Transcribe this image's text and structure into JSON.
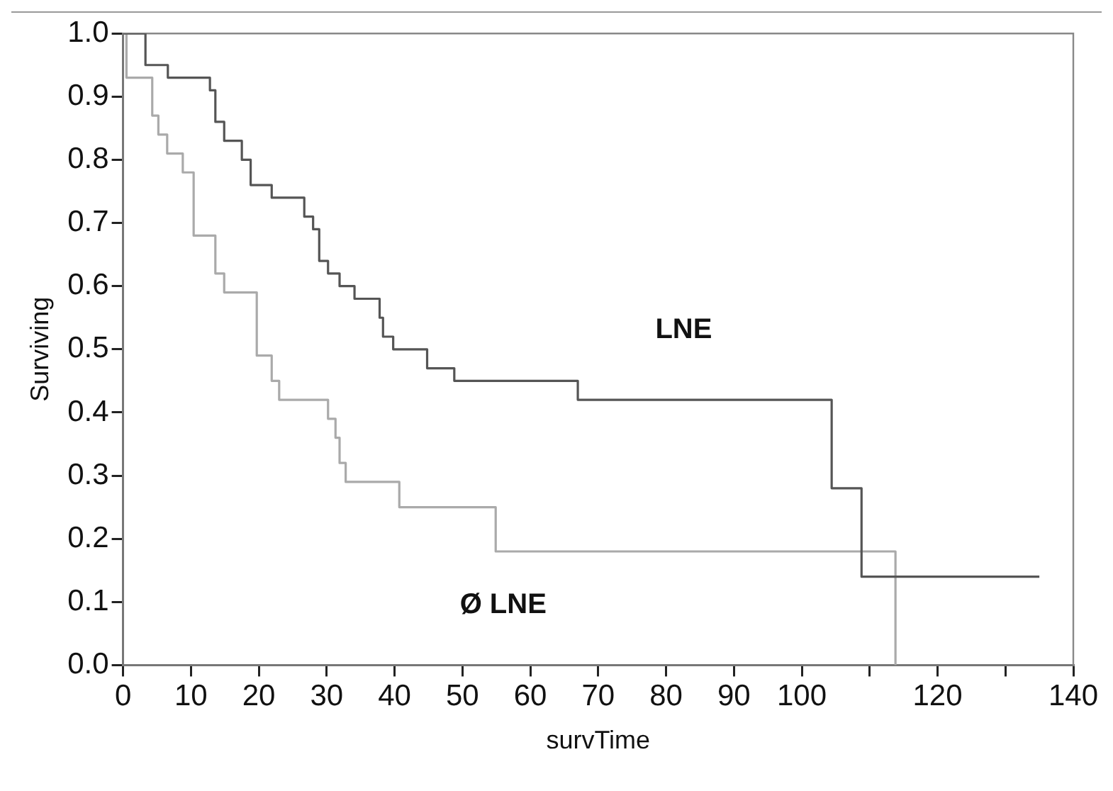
{
  "chart_data": {
    "type": "step",
    "xlabel": "survTime",
    "ylabel": "Surviving",
    "xlim": [
      0,
      140
    ],
    "ylim": [
      0,
      1
    ],
    "xticks": [
      0,
      10,
      20,
      30,
      40,
      50,
      60,
      70,
      80,
      90,
      100,
      {
        "value": 110,
        "label": null
      },
      120,
      {
        "value": 130,
        "label": null
      },
      140
    ],
    "yticks": [
      {
        "value": 0,
        "label": "0.0"
      },
      0.1,
      0.2,
      0.3,
      0.4,
      0.5,
      0.6,
      0.7,
      0.8,
      0.9,
      {
        "value": 1,
        "label": "1.0"
      }
    ],
    "grid": false,
    "legend": false,
    "marker": "none",
    "line_style": "solid",
    "series": [
      {
        "name": "LNE",
        "color": "#555555",
        "x": [
          0,
          3.3,
          6.6,
          12.8,
          13.6,
          14.9,
          17.5,
          18.8,
          21.9,
          26.7,
          28,
          28.9,
          30.2,
          31.9,
          34.1,
          37.8,
          38.3,
          39.8,
          44.8,
          48.8,
          67,
          104.4,
          108.8,
          135
        ],
        "values": [
          1,
          0.95,
          0.93,
          0.91,
          0.86,
          0.83,
          0.8,
          0.76,
          0.74,
          0.71,
          0.69,
          0.64,
          0.62,
          0.6,
          0.58,
          0.55,
          0.52,
          0.5,
          0.47,
          0.45,
          0.42,
          0.28,
          0.14,
          0.14
        ]
      },
      {
        "name": "Ø LNE",
        "color": "#aaaaaa",
        "x": [
          0,
          0.5,
          4.3,
          5.2,
          6.5,
          8.8,
          10.4,
          13.6,
          14.9,
          19.7,
          21.9,
          23,
          30.2,
          31.3,
          31.9,
          32.8,
          40.7,
          54.9,
          113.8
        ],
        "values": [
          1,
          0.93,
          0.87,
          0.84,
          0.81,
          0.78,
          0.68,
          0.62,
          0.59,
          0.49,
          0.45,
          0.42,
          0.39,
          0.36,
          0.32,
          0.29,
          0.25,
          0.18,
          0
        ]
      }
    ]
  }
}
